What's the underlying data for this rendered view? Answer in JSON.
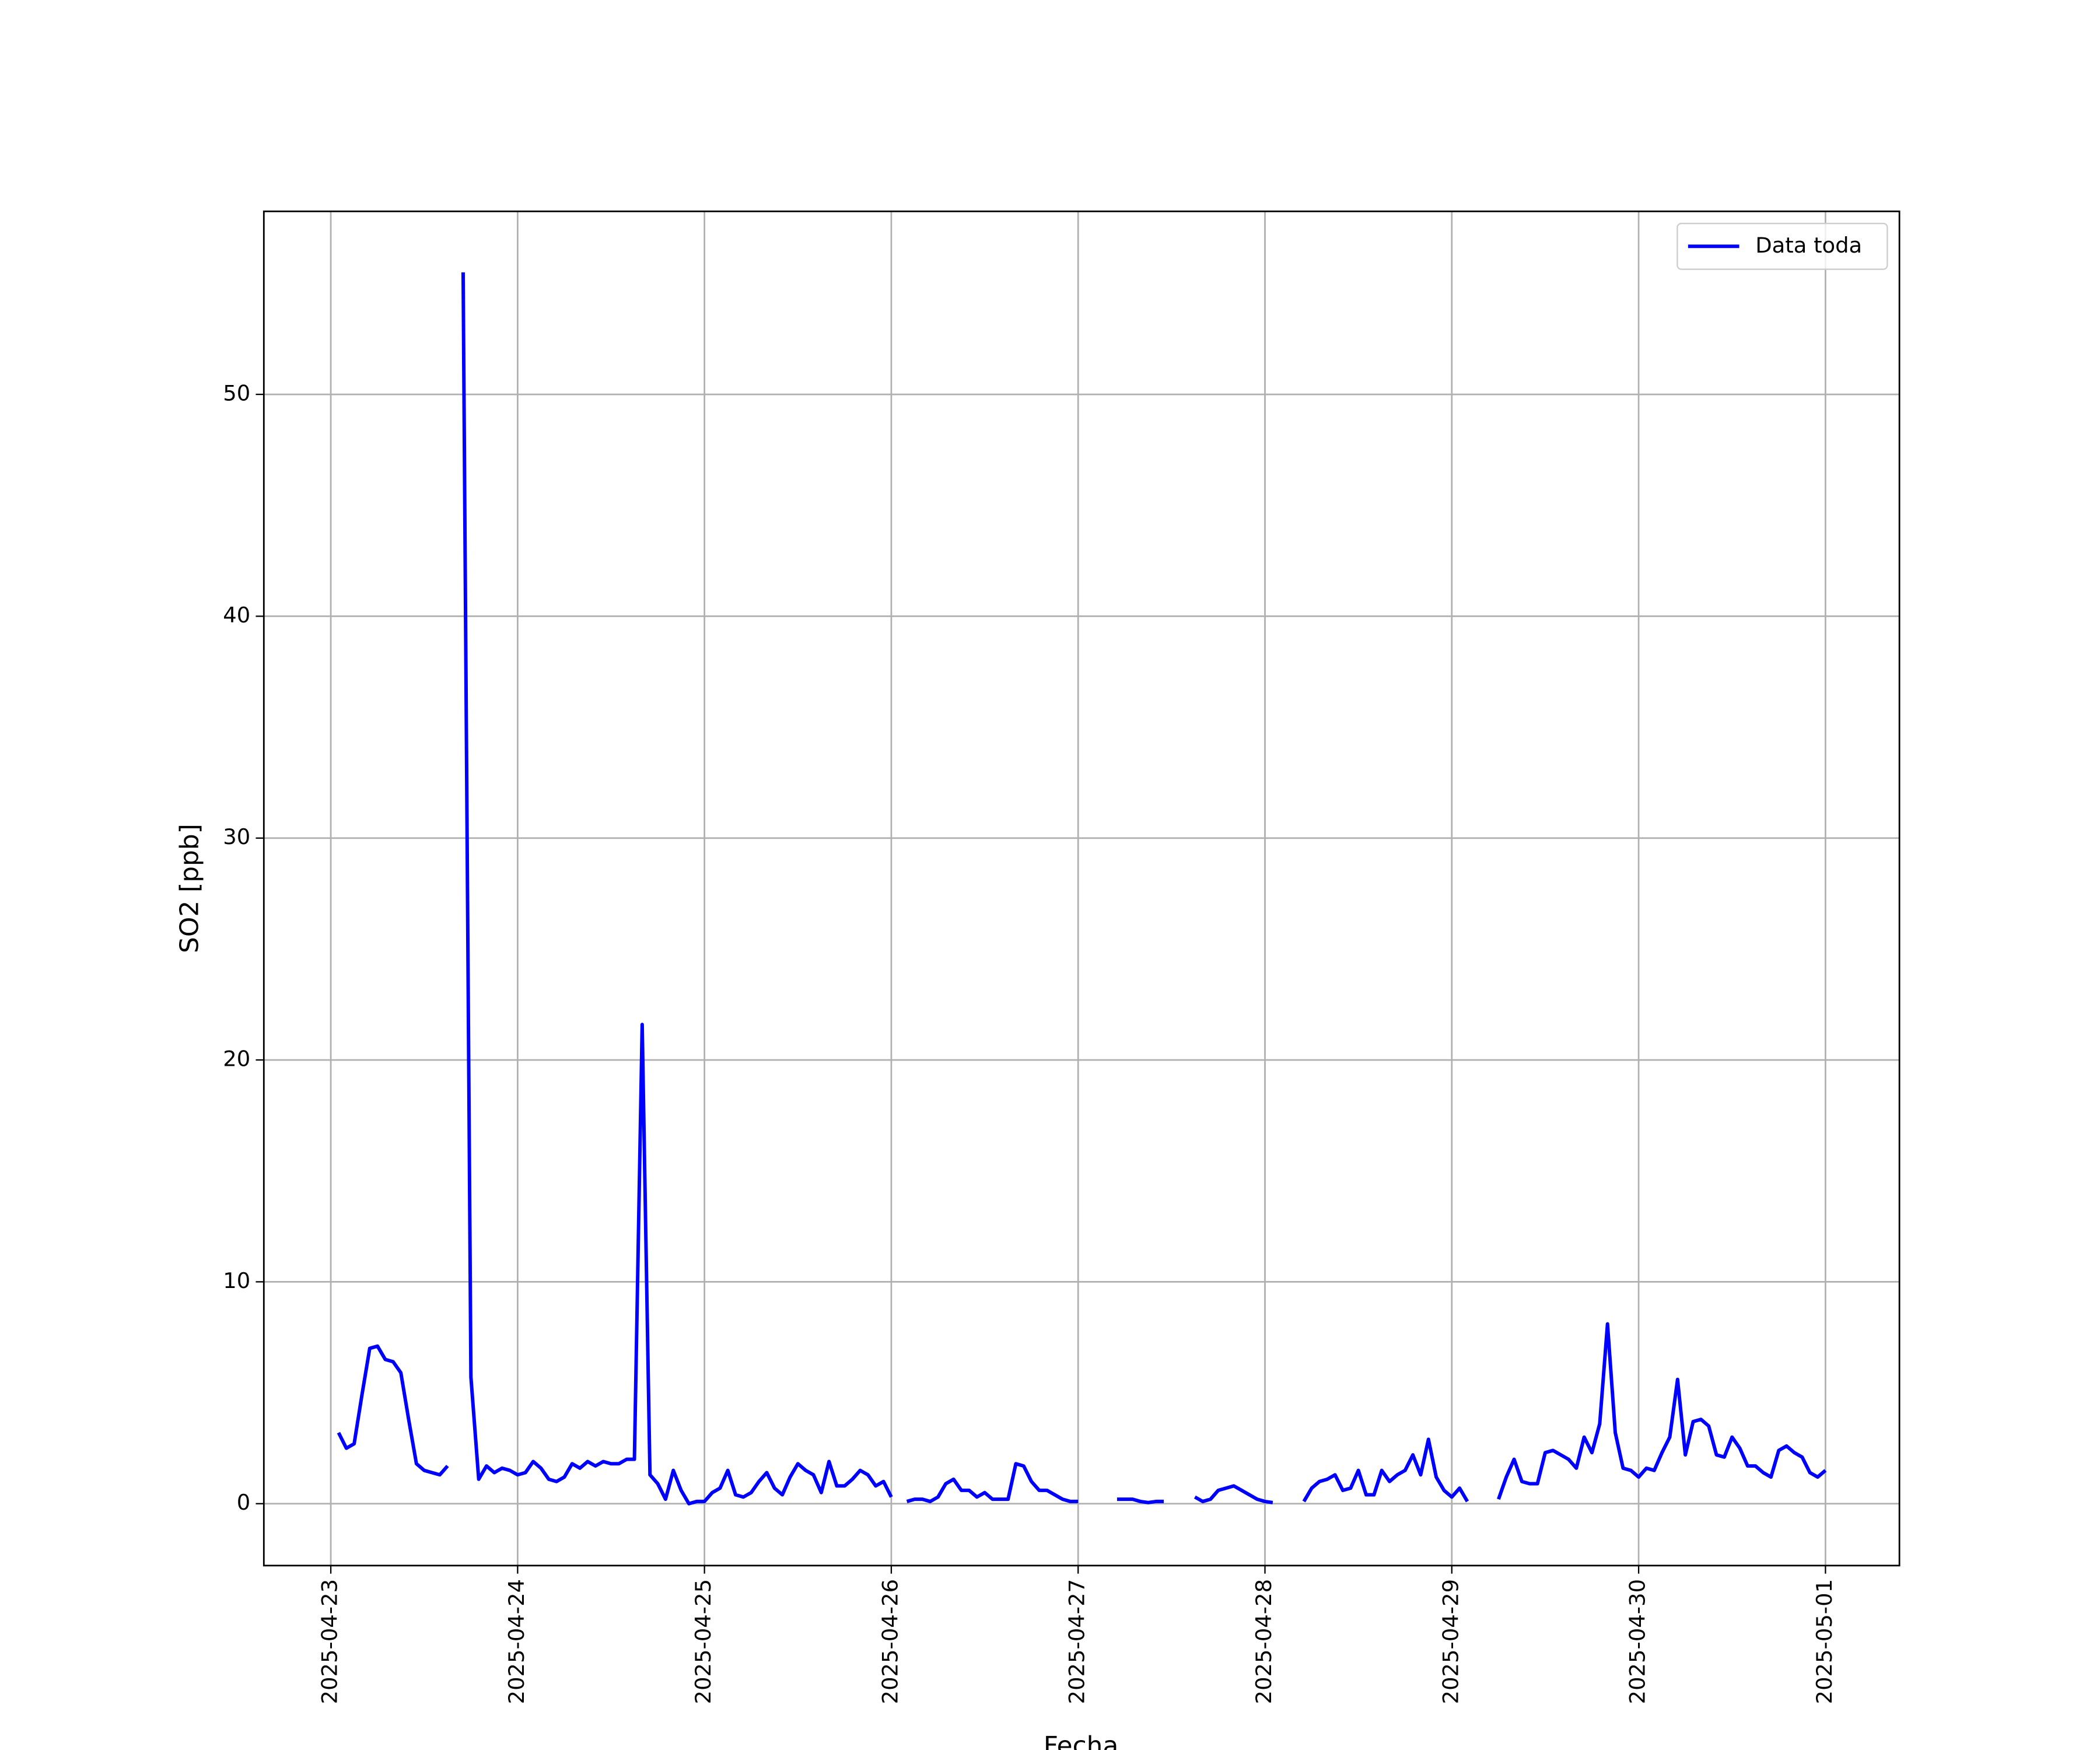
{
  "chart_data": {
    "type": "line",
    "xlabel": "Fecha",
    "ylabel": "SO2 [ppb]",
    "x": [
      1,
      2,
      3,
      4,
      5,
      6,
      7,
      8,
      9,
      10,
      11,
      12,
      13,
      14,
      15,
      16,
      17,
      18,
      19,
      20,
      21,
      22,
      23,
      24,
      25,
      26,
      27,
      28,
      29,
      30,
      31,
      32,
      33,
      34,
      35,
      36,
      37,
      38,
      39,
      40,
      41,
      42,
      43,
      44,
      45,
      46,
      47,
      48,
      49,
      50,
      51,
      52,
      53,
      54,
      55,
      56,
      57,
      58,
      59,
      60,
      61,
      62,
      63,
      64,
      65,
      66,
      67,
      68,
      69,
      70,
      71,
      72,
      73,
      74,
      75,
      76,
      77,
      78,
      79,
      80,
      81,
      82,
      83,
      84,
      85,
      86,
      87,
      88,
      89,
      90,
      91,
      92,
      93,
      94,
      95,
      96,
      97,
      98,
      99,
      100,
      101,
      102,
      103,
      104,
      105,
      106,
      107,
      108,
      109,
      110,
      111,
      112,
      113,
      114,
      115,
      116,
      117,
      118,
      119,
      120,
      121,
      122,
      123,
      124,
      125,
      126,
      127,
      128,
      129,
      130,
      131,
      132,
      133,
      134,
      135,
      136,
      137,
      138,
      139,
      140,
      141,
      142,
      143,
      144,
      145,
      146,
      147,
      148,
      149,
      150,
      151,
      152,
      153,
      154,
      155,
      156,
      157,
      158,
      159,
      160,
      161,
      162,
      163,
      164,
      165,
      166,
      167,
      168,
      169,
      170,
      171,
      172,
      173,
      174,
      175,
      176,
      177,
      178,
      179,
      180,
      181,
      182,
      183,
      184,
      185,
      186,
      187,
      188,
      189,
      190,
      191,
      192
    ],
    "series": [
      {
        "name": "Data toda",
        "color": "#0000ff",
        "values": [
          3.2,
          2.5,
          2.7,
          4.9,
          7.0,
          7.1,
          6.5,
          6.4,
          5.9,
          3.8,
          1.8,
          1.5,
          1.4,
          1.3,
          1.7,
          null,
          55.5,
          5.7,
          1.1,
          1.7,
          1.4,
          1.6,
          1.5,
          1.3,
          1.4,
          1.9,
          1.6,
          1.1,
          1.0,
          1.2,
          1.8,
          1.6,
          1.9,
          1.7,
          1.9,
          1.8,
          1.8,
          2.0,
          2.0,
          21.6,
          1.3,
          0.9,
          0.2,
          1.5,
          0.6,
          0.0,
          0.1,
          0.1,
          0.5,
          0.7,
          1.5,
          0.4,
          0.3,
          0.5,
          1.0,
          1.4,
          0.7,
          0.4,
          1.2,
          1.8,
          1.5,
          1.3,
          0.5,
          1.9,
          0.8,
          0.8,
          1.1,
          1.5,
          1.3,
          0.8,
          1.0,
          0.3,
          null,
          0.1,
          0.2,
          0.2,
          0.1,
          0.3,
          0.9,
          1.1,
          0.6,
          0.6,
          0.3,
          0.5,
          0.2,
          0.2,
          0.2,
          1.8,
          1.7,
          1.0,
          0.6,
          0.6,
          0.4,
          0.2,
          0.1,
          0.1,
          null,
          null,
          null,
          null,
          0.2,
          0.2,
          0.2,
          0.1,
          0.05,
          0.1,
          0.1,
          null,
          null,
          null,
          0.3,
          0.1,
          0.2,
          0.6,
          0.7,
          0.8,
          0.6,
          0.4,
          0.2,
          0.1,
          0.05,
          null,
          null,
          null,
          0.1,
          0.7,
          1.0,
          1.1,
          1.3,
          0.6,
          0.7,
          1.5,
          0.4,
          0.4,
          1.5,
          1.0,
          1.3,
          1.5,
          2.2,
          1.3,
          2.9,
          1.2,
          0.6,
          0.3,
          0.7,
          0.1,
          null,
          null,
          null,
          0.2,
          1.2,
          2.0,
          1.0,
          0.9,
          0.9,
          2.3,
          2.4,
          2.2,
          2.0,
          1.6,
          3.0,
          2.3,
          3.6,
          8.1,
          3.2,
          1.6,
          1.5,
          1.2,
          1.6,
          1.5,
          2.3,
          3.0,
          5.6,
          2.2,
          3.7,
          3.8,
          3.5,
          2.2,
          2.1,
          3.0,
          2.5,
          1.7,
          1.7,
          1.4,
          1.2,
          2.4,
          2.6,
          2.3,
          2.1,
          1.4,
          1.2,
          1.5
        ]
      }
    ],
    "xlim": [
      -8.6,
      201.5
    ],
    "xticks": [
      {
        "value": 0,
        "label": "2025-04-23"
      },
      {
        "value": 24,
        "label": "2025-04-24"
      },
      {
        "value": 48,
        "label": "2025-04-25"
      },
      {
        "value": 72,
        "label": "2025-04-26"
      },
      {
        "value": 96,
        "label": "2025-04-27"
      },
      {
        "value": 120,
        "label": "2025-04-28"
      },
      {
        "value": 144,
        "label": "2025-04-29"
      },
      {
        "value": 168,
        "label": "2025-04-30"
      },
      {
        "value": 192,
        "label": "2025-05-01"
      }
    ],
    "ylim": [
      -2.79,
      58.25
    ],
    "yticks": [
      0,
      10,
      20,
      30,
      40,
      50
    ],
    "grid": true,
    "legend": "upper right"
  }
}
